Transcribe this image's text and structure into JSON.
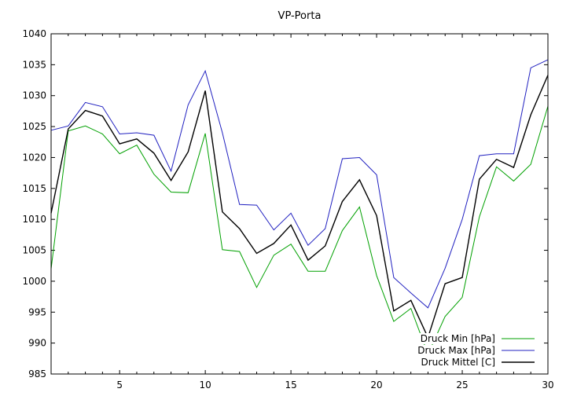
{
  "chart_data": {
    "type": "line",
    "title": "VP-Porta",
    "xlabel": "",
    "ylabel": "",
    "xlim": [
      1,
      30
    ],
    "ylim": [
      985,
      1040
    ],
    "xticks": [
      5,
      10,
      15,
      20,
      25,
      30
    ],
    "yticks": [
      985,
      990,
      995,
      1000,
      1005,
      1010,
      1015,
      1020,
      1025,
      1030,
      1035,
      1040
    ],
    "grid": false,
    "legend_position": "bottom-right",
    "x": [
      1,
      2,
      3,
      4,
      5,
      6,
      7,
      8,
      9,
      10,
      11,
      12,
      13,
      14,
      15,
      16,
      17,
      18,
      19,
      20,
      21,
      22,
      23,
      24,
      25,
      26,
      27,
      28,
      29,
      30
    ],
    "series": [
      {
        "name": "Druck Min [hPa]",
        "color": "#00a000",
        "values": [
          1002.0,
          1024.3,
          1025.1,
          1023.8,
          1020.6,
          1022.0,
          1017.3,
          1014.4,
          1014.3,
          1023.9,
          1005.1,
          1004.8,
          999.0,
          1004.2,
          1006.0,
          1001.6,
          1001.6,
          1008.2,
          1012.0,
          1000.9,
          993.5,
          995.6,
          988.2,
          994.3,
          997.4,
          1010.4,
          1018.5,
          1016.2,
          1018.9,
          1028.3
        ]
      },
      {
        "name": "Druck Max [hPa]",
        "color": "#2020c0",
        "values": [
          1024.4,
          1025.1,
          1028.9,
          1028.2,
          1023.8,
          1024.0,
          1023.6,
          1017.8,
          1028.5,
          1034.0,
          1024.0,
          1012.4,
          1012.3,
          1008.3,
          1011.0,
          1005.8,
          1008.5,
          1019.8,
          1020.0,
          1017.2,
          1000.6,
          998.1,
          995.7,
          1002.1,
          1010.0,
          1020.3,
          1020.6,
          1020.6,
          1034.5,
          1035.8
        ]
      },
      {
        "name": "Druck Mittel [C]",
        "color": "#000000",
        "values": [
          1011.0,
          1024.6,
          1027.6,
          1026.7,
          1022.2,
          1023.0,
          1020.7,
          1016.3,
          1020.9,
          1030.8,
          1011.2,
          1008.5,
          1004.5,
          1006.1,
          1009.1,
          1003.4,
          1005.7,
          1012.9,
          1016.4,
          1010.6,
          995.2,
          996.9,
          990.9,
          999.6,
          1000.6,
          1016.5,
          1019.7,
          1018.4,
          1026.9,
          1033.3
        ]
      }
    ]
  }
}
